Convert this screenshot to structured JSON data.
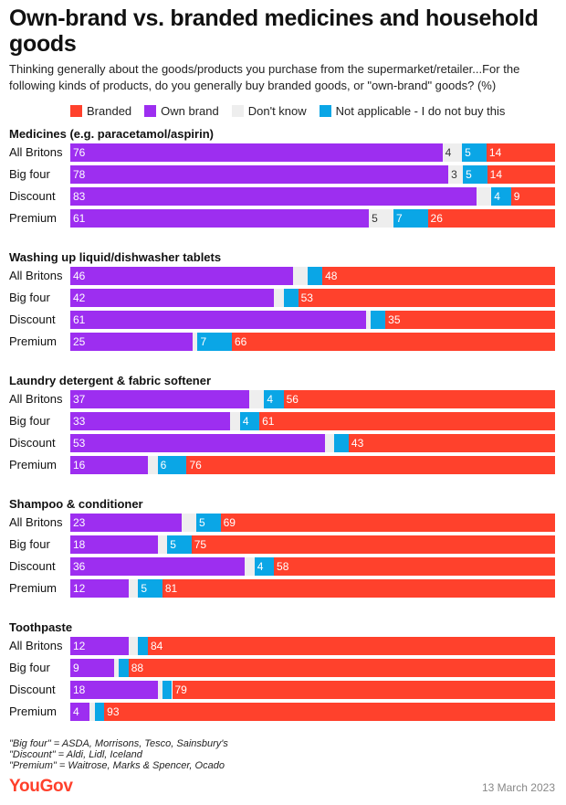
{
  "header": {
    "title": "Own-brand vs. branded medicines and household goods",
    "subtitle": "Thinking generally about the goods/products you purchase from the supermarket/retailer...For the following kinds of products, do you generally buy branded goods, or \"own-brand\" goods? (%)"
  },
  "colors": {
    "branded": "#ff412c",
    "own_brand": "#9d2ef0",
    "dont_know": "#eeeeee",
    "not_applicable": "#0aa6e6"
  },
  "chart_data": {
    "type": "bar",
    "orientation": "horizontal",
    "stacked": true,
    "title": "Own-brand vs. branded medicines and household goods",
    "unit": "%",
    "legend_position": "top",
    "series_order": [
      "Own brand",
      "Don't know",
      "Not applicable - I do not buy this",
      "Branded"
    ],
    "legend": [
      {
        "name": "Branded",
        "color_key": "branded"
      },
      {
        "name": "Own brand",
        "color_key": "own_brand"
      },
      {
        "name": "Don't know",
        "color_key": "dont_know"
      },
      {
        "name": "Not applicable - I do not buy this",
        "color_key": "not_applicable"
      }
    ],
    "groups": [
      {
        "name": "Medicines (e.g. paracetamol/aspirin)",
        "rows": [
          {
            "label": "All Britons",
            "own_brand": 76,
            "dont_know": 4,
            "not_applicable": 5,
            "branded": 14
          },
          {
            "label": "Big four",
            "own_brand": 78,
            "dont_know": 3,
            "not_applicable": 5,
            "branded": 14
          },
          {
            "label": "Discount",
            "own_brand": 83,
            "dont_know": 3,
            "not_applicable": 4,
            "branded": 9,
            "hidden_labels": [
              "dont_know"
            ]
          },
          {
            "label": "Premium",
            "own_brand": 61,
            "dont_know": 5,
            "not_applicable": 7,
            "branded": 26
          }
        ]
      },
      {
        "name": "Washing up liquid/dishwasher tablets",
        "rows": [
          {
            "label": "All Britons",
            "own_brand": 46,
            "dont_know": 3,
            "not_applicable": 3,
            "branded": 48,
            "hidden_labels": [
              "dont_know",
              "not_applicable"
            ]
          },
          {
            "label": "Big four",
            "own_brand": 42,
            "dont_know": 2,
            "not_applicable": 3,
            "branded": 53,
            "hidden_labels": [
              "dont_know",
              "not_applicable"
            ]
          },
          {
            "label": "Discount",
            "own_brand": 61,
            "dont_know": 1,
            "not_applicable": 3,
            "branded": 35,
            "hidden_labels": [
              "dont_know",
              "not_applicable"
            ]
          },
          {
            "label": "Premium",
            "own_brand": 25,
            "dont_know": 1,
            "not_applicable": 7,
            "branded": 66,
            "hidden_labels": [
              "dont_know"
            ]
          }
        ]
      },
      {
        "name": "Laundry detergent & fabric softener",
        "rows": [
          {
            "label": "All Britons",
            "own_brand": 37,
            "dont_know": 3,
            "not_applicable": 4,
            "branded": 56,
            "hidden_labels": [
              "dont_know"
            ]
          },
          {
            "label": "Big four",
            "own_brand": 33,
            "dont_know": 2,
            "not_applicable": 4,
            "branded": 61,
            "hidden_labels": [
              "dont_know"
            ]
          },
          {
            "label": "Discount",
            "own_brand": 53,
            "dont_know": 2,
            "not_applicable": 3,
            "branded": 43,
            "hidden_labels": [
              "dont_know",
              "not_applicable"
            ]
          },
          {
            "label": "Premium",
            "own_brand": 16,
            "dont_know": 2,
            "not_applicable": 6,
            "branded": 76,
            "hidden_labels": [
              "dont_know"
            ]
          }
        ]
      },
      {
        "name": "Shampoo & conditioner",
        "rows": [
          {
            "label": "All Britons",
            "own_brand": 23,
            "dont_know": 3,
            "not_applicable": 5,
            "branded": 69,
            "hidden_labels": [
              "dont_know"
            ]
          },
          {
            "label": "Big four",
            "own_brand": 18,
            "dont_know": 2,
            "not_applicable": 5,
            "branded": 75,
            "hidden_labels": [
              "dont_know"
            ]
          },
          {
            "label": "Discount",
            "own_brand": 36,
            "dont_know": 2,
            "not_applicable": 4,
            "branded": 58,
            "hidden_labels": [
              "dont_know"
            ]
          },
          {
            "label": "Premium",
            "own_brand": 12,
            "dont_know": 2,
            "not_applicable": 5,
            "branded": 81,
            "hidden_labels": [
              "dont_know"
            ]
          }
        ]
      },
      {
        "name": "Toothpaste",
        "rows": [
          {
            "label": "All Britons",
            "own_brand": 12,
            "dont_know": 2,
            "not_applicable": 2,
            "branded": 84,
            "hidden_labels": [
              "dont_know",
              "not_applicable"
            ]
          },
          {
            "label": "Big four",
            "own_brand": 9,
            "dont_know": 1,
            "not_applicable": 2,
            "branded": 88,
            "hidden_labels": [
              "dont_know",
              "not_applicable"
            ]
          },
          {
            "label": "Discount",
            "own_brand": 18,
            "dont_know": 1,
            "not_applicable": 2,
            "branded": 79,
            "hidden_labels": [
              "dont_know",
              "not_applicable"
            ]
          },
          {
            "label": "Premium",
            "own_brand": 4,
            "dont_know": 1,
            "not_applicable": 2,
            "branded": 93,
            "hidden_labels": [
              "dont_know",
              "not_applicable"
            ]
          }
        ]
      }
    ]
  },
  "footnotes": [
    "\"Big four\" = ASDA, Morrisons, Tesco, Sainsbury's",
    "\"Discount\" = Aldi, Lidl, Iceland",
    "\"Premium\" = Waitrose, Marks & Spencer, Ocado"
  ],
  "footer": {
    "logo": "YouGov",
    "date": "13 March 2023"
  }
}
